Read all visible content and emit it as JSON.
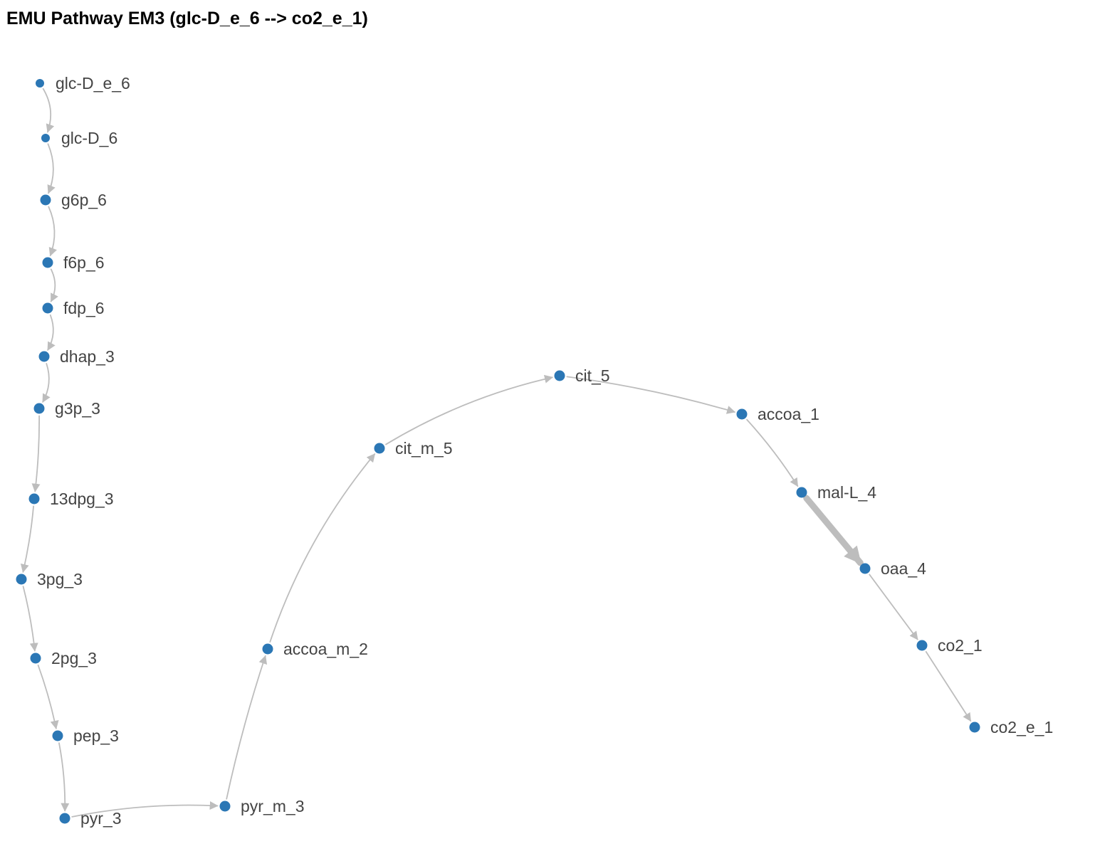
{
  "title": "EMU Pathway EM3 (glc-D_e_6 --> co2_e_1)",
  "colors": {
    "node": "#2b77b5",
    "edge": "#bdbdbd",
    "label": "#444444"
  },
  "nodes": [
    {
      "id": "glc-D_e_6",
      "label": "glc-D_e_6",
      "size": "small"
    },
    {
      "id": "glc-D_6",
      "label": "glc-D_6",
      "size": "small"
    },
    {
      "id": "g6p_6",
      "label": "g6p_6",
      "size": "normal"
    },
    {
      "id": "f6p_6",
      "label": "f6p_6",
      "size": "normal"
    },
    {
      "id": "fdp_6",
      "label": "fdp_6",
      "size": "normal"
    },
    {
      "id": "dhap_3",
      "label": "dhap_3",
      "size": "normal"
    },
    {
      "id": "g3p_3",
      "label": "g3p_3",
      "size": "normal"
    },
    {
      "id": "13dpg_3",
      "label": "13dpg_3",
      "size": "normal"
    },
    {
      "id": "3pg_3",
      "label": "3pg_3",
      "size": "normal"
    },
    {
      "id": "2pg_3",
      "label": "2pg_3",
      "size": "normal"
    },
    {
      "id": "pep_3",
      "label": "pep_3",
      "size": "normal"
    },
    {
      "id": "pyr_3",
      "label": "pyr_3",
      "size": "normal"
    },
    {
      "id": "pyr_m_3",
      "label": "pyr_m_3",
      "size": "normal"
    },
    {
      "id": "accoa_m_2",
      "label": "accoa_m_2",
      "size": "normal"
    },
    {
      "id": "cit_m_5",
      "label": "cit_m_5",
      "size": "normal"
    },
    {
      "id": "cit_5",
      "label": "cit_5",
      "size": "normal"
    },
    {
      "id": "accoa_1",
      "label": "accoa_1",
      "size": "normal"
    },
    {
      "id": "mal-L_4",
      "label": "mal-L_4",
      "size": "normal"
    },
    {
      "id": "oaa_4",
      "label": "oaa_4",
      "size": "normal"
    },
    {
      "id": "co2_1",
      "label": "co2_1",
      "size": "normal"
    },
    {
      "id": "co2_e_1",
      "label": "co2_e_1",
      "size": "normal"
    }
  ],
  "edges": [
    {
      "source": "glc-D_e_6",
      "target": "glc-D_6",
      "weight": "thin"
    },
    {
      "source": "glc-D_6",
      "target": "g6p_6",
      "weight": "thin"
    },
    {
      "source": "g6p_6",
      "target": "f6p_6",
      "weight": "thin"
    },
    {
      "source": "f6p_6",
      "target": "fdp_6",
      "weight": "thin"
    },
    {
      "source": "fdp_6",
      "target": "dhap_3",
      "weight": "thin"
    },
    {
      "source": "dhap_3",
      "target": "g3p_3",
      "weight": "thin"
    },
    {
      "source": "g3p_3",
      "target": "13dpg_3",
      "weight": "thin"
    },
    {
      "source": "13dpg_3",
      "target": "3pg_3",
      "weight": "thin"
    },
    {
      "source": "3pg_3",
      "target": "2pg_3",
      "weight": "thin"
    },
    {
      "source": "2pg_3",
      "target": "pep_3",
      "weight": "thin"
    },
    {
      "source": "pep_3",
      "target": "pyr_3",
      "weight": "thin"
    },
    {
      "source": "pyr_3",
      "target": "pyr_m_3",
      "weight": "thin"
    },
    {
      "source": "pyr_m_3",
      "target": "accoa_m_2",
      "weight": "thin"
    },
    {
      "source": "accoa_m_2",
      "target": "cit_m_5",
      "weight": "thin"
    },
    {
      "source": "cit_m_5",
      "target": "cit_5",
      "weight": "thin"
    },
    {
      "source": "cit_5",
      "target": "accoa_1",
      "weight": "thin"
    },
    {
      "source": "accoa_1",
      "target": "mal-L_4",
      "weight": "thin"
    },
    {
      "source": "mal-L_4",
      "target": "oaa_4",
      "weight": "thick"
    },
    {
      "source": "oaa_4",
      "target": "co2_1",
      "weight": "thin"
    },
    {
      "source": "co2_1",
      "target": "co2_e_1",
      "weight": "thin"
    }
  ]
}
